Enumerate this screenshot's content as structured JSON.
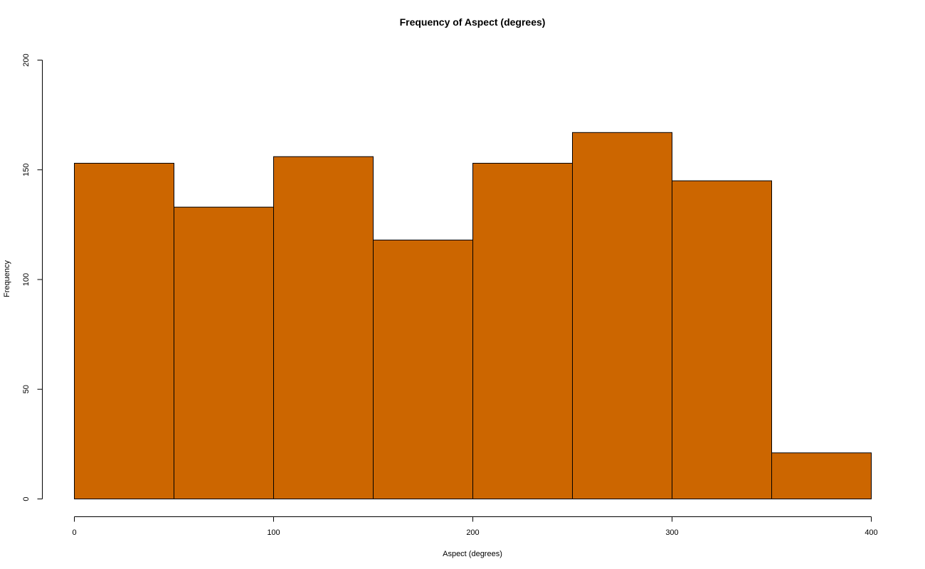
{
  "chart_data": {
    "type": "bar",
    "title": "Frequency of Aspect (degrees)",
    "xlabel": "Aspect (degrees)",
    "ylabel": "Frequency",
    "bins": [
      {
        "x0": 0,
        "x1": 50,
        "count": 153
      },
      {
        "x0": 50,
        "x1": 100,
        "count": 133
      },
      {
        "x0": 100,
        "x1": 150,
        "count": 156
      },
      {
        "x0": 150,
        "x1": 200,
        "count": 118
      },
      {
        "x0": 200,
        "x1": 250,
        "count": 153
      },
      {
        "x0": 250,
        "x1": 300,
        "count": 167
      },
      {
        "x0": 300,
        "x1": 350,
        "count": 145
      },
      {
        "x0": 350,
        "x1": 400,
        "count": 21
      }
    ],
    "xlim": [
      0,
      400
    ],
    "ylim": [
      0,
      200
    ],
    "xticks": [
      0,
      100,
      200,
      300,
      400
    ],
    "yticks": [
      0,
      50,
      100,
      150,
      200
    ],
    "xtick_labels": [
      "0",
      "100",
      "200",
      "300",
      "400"
    ],
    "ytick_labels": [
      "0",
      "50",
      "100",
      "150",
      "200"
    ],
    "bar_color": "#CC6600",
    "grid": false,
    "legend": "none"
  }
}
